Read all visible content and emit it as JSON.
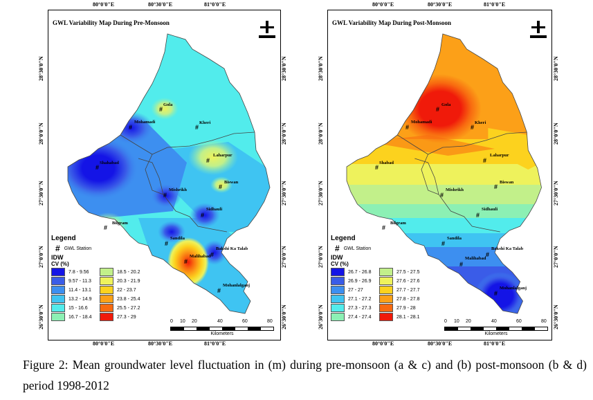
{
  "maps": [
    {
      "title": "GWL Variability Map During Pre-Monsoon",
      "top_ticks": [
        "80°0'0\"E",
        "80°30'0\"E",
        "81°0'0\"E"
      ],
      "bottom_ticks": [
        "80°0'0\"E",
        "80°30'0\"E",
        "81°0'0\"E"
      ],
      "left_ticks": [
        "28°30'0\"N",
        "28°0'0\"N",
        "27°30'0\"N",
        "27°0'0\"N",
        "26°30'0\"N"
      ],
      "right_ticks": [
        "28°30'0\"N",
        "28°0'0\"N",
        "27°30'0\"N",
        "27°0'0\"N",
        "26°30'0\"N"
      ],
      "places": [
        "Gola",
        "Mohamadi",
        "Kheri",
        "Shahabad",
        "Laharpur",
        "Biswan",
        "Mishrikh",
        "Sidhauli",
        "Bilgram",
        "Sandila",
        "Bakshi Ka Talab",
        "Malihabad",
        "Mohanlalganj"
      ],
      "legend": {
        "title": "Legend",
        "station_symbol": "#",
        "station_label": "GWL Station",
        "method": "IDW",
        "unit_label": "CV (%)",
        "classes": [
          {
            "label": "7.8 - 9.56",
            "color": "#1414e6"
          },
          {
            "label": "9.57 - 11.3",
            "color": "#3a5ce8"
          },
          {
            "label": "11.4 - 13.1",
            "color": "#3d8ff0"
          },
          {
            "label": "13.2 - 14.9",
            "color": "#3fc4f2"
          },
          {
            "label": "15 - 16.6",
            "color": "#52ecec"
          },
          {
            "label": "16.7 - 18.4",
            "color": "#8cf0b4"
          },
          {
            "label": "18.5 - 20.2",
            "color": "#c2f08a"
          },
          {
            "label": "20.3 - 21.9",
            "color": "#eef25c"
          },
          {
            "label": "22 - 23.7",
            "color": "#fcd21e"
          },
          {
            "label": "23.8 - 25.4",
            "color": "#fca018"
          },
          {
            "label": "25.5 - 27.2",
            "color": "#f86a10"
          },
          {
            "label": "27.3 - 29",
            "color": "#f01a0a"
          }
        ]
      },
      "scale": {
        "ticks": [
          "0",
          "10",
          "20",
          "40",
          "60",
          "80"
        ],
        "unit": "Kilometers"
      }
    },
    {
      "title": "GWL Variability Map During Post-Monsoon",
      "top_ticks": [
        "80°0'0\"E",
        "80°30'0\"E",
        "81°0'0\"E"
      ],
      "bottom_ticks": [
        "80°0'0\"E",
        "80°30'0\"E",
        "81°0'0\"E"
      ],
      "left_ticks": [
        "28°30'0\"N",
        "28°0'0\"N",
        "27°30'0\"N",
        "27°0'0\"N",
        "26°30'0\"N"
      ],
      "right_ticks": [
        "28°30'0\"N",
        "28°0'0\"N",
        "27°30'0\"N",
        "27°0'0\"N",
        "26°30'0\"N"
      ],
      "places": [
        "Gola",
        "Mohamadi",
        "Kheri",
        "Shabad",
        "Laharpur",
        "Biswan",
        "Mishrikh",
        "Sidhauli",
        "Bilgram",
        "Sandila",
        "Bakshi Ka Talab",
        "Malihabad",
        "Mohanlalganj"
      ],
      "legend": {
        "title": "Legend",
        "station_symbol": "#",
        "station_label": "GWL Station",
        "method": "IDW",
        "unit_label": "CV (%)",
        "classes": [
          {
            "label": "26.7 - 26.8",
            "color": "#1414e6"
          },
          {
            "label": "26.9 - 26.9",
            "color": "#3a5ce8"
          },
          {
            "label": "27 - 27",
            "color": "#3d8ff0"
          },
          {
            "label": "27.1 - 27.2",
            "color": "#3fc4f2"
          },
          {
            "label": "27.3 - 27.3",
            "color": "#52ecec"
          },
          {
            "label": "27.4 - 27.4",
            "color": "#8cf0b4"
          },
          {
            "label": "27.5 - 27.5",
            "color": "#c2f08a"
          },
          {
            "label": "27.6 - 27.6",
            "color": "#eef25c"
          },
          {
            "label": "27.7 - 27.7",
            "color": "#fcd21e"
          },
          {
            "label": "27.8 - 27.8",
            "color": "#fca018"
          },
          {
            "label": "27.9 - 28",
            "color": "#f86a10"
          },
          {
            "label": "28.1 - 28.1",
            "color": "#f01a0a"
          }
        ]
      },
      "scale": {
        "ticks": [
          "0",
          "10",
          "20",
          "40",
          "60",
          "80"
        ],
        "unit": "Kilometers"
      }
    }
  ],
  "caption": "Figure 2: Mean groundwater level fluctuation in (m) during pre-monsoon (a & c) and (b) post-monsoon (b & d) period 1998-2012"
}
